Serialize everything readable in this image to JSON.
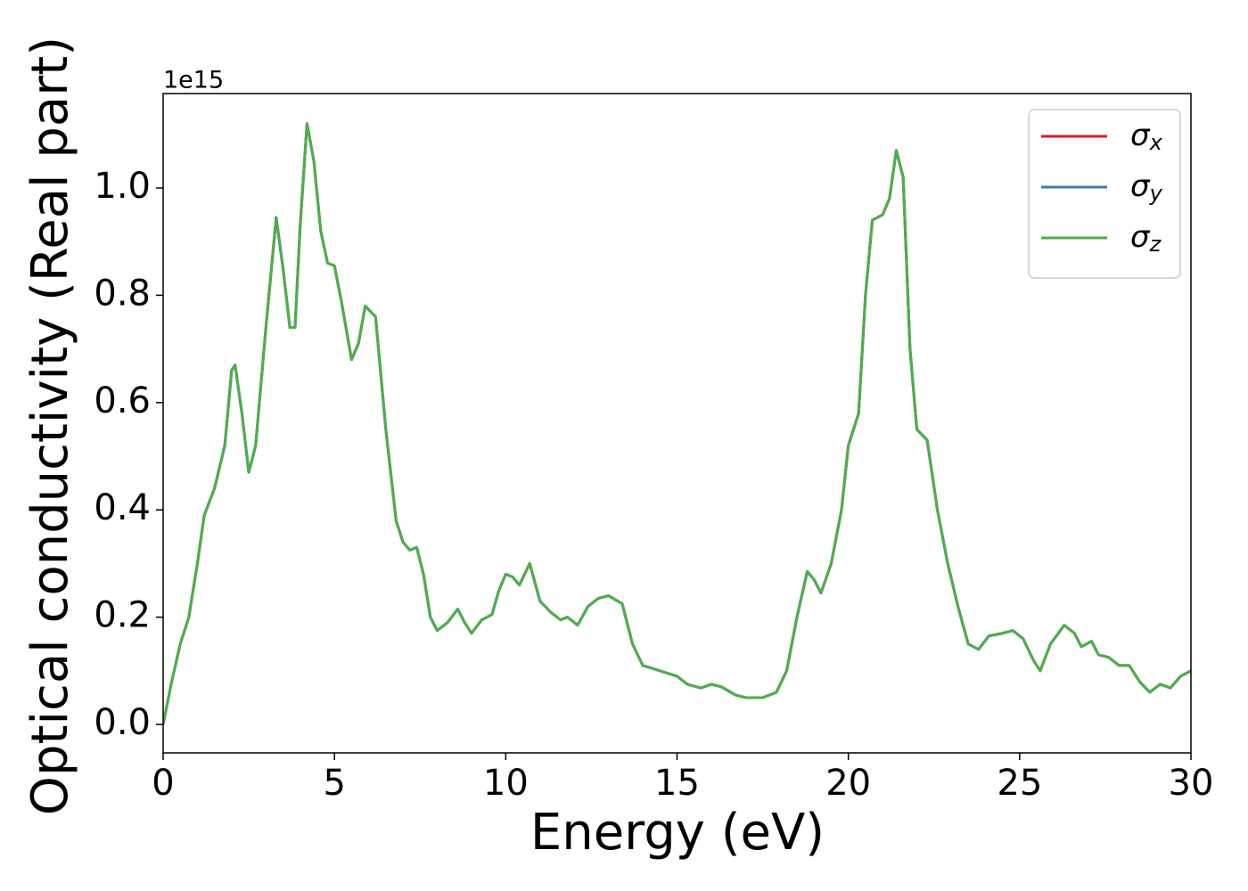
{
  "chart_data": {
    "type": "line",
    "xlabel": "Energy (eV)",
    "ylabel": "Optical conductivity (Real part)",
    "y_offset_label": "1e15",
    "xlim": [
      0,
      30
    ],
    "ylim": [
      -0.053,
      1.176
    ],
    "xticks": [
      0,
      5,
      10,
      15,
      20,
      25,
      30
    ],
    "yticks": [
      {
        "value": 0,
        "label": "0.0"
      },
      {
        "value": 0.2,
        "label": "0.2"
      },
      {
        "value": 0.4,
        "label": "0.4"
      },
      {
        "value": 0.6,
        "label": "0.6"
      },
      {
        "value": 0.8,
        "label": "0.8"
      },
      {
        "value": 1.0,
        "label": "1.0"
      }
    ],
    "grid": false,
    "legend": "upper right",
    "x": [
      0,
      0.25,
      0.5,
      0.75,
      1.0,
      1.2,
      1.5,
      1.8,
      2.0,
      2.1,
      2.3,
      2.5,
      2.7,
      3.0,
      3.3,
      3.5,
      3.7,
      3.85,
      4.0,
      4.2,
      4.4,
      4.6,
      4.8,
      5.0,
      5.2,
      5.5,
      5.7,
      5.9,
      6.2,
      6.5,
      6.8,
      7.0,
      7.2,
      7.4,
      7.6,
      7.8,
      8.0,
      8.3,
      8.6,
      8.8,
      9.0,
      9.3,
      9.6,
      9.8,
      10.0,
      10.2,
      10.4,
      10.7,
      11.0,
      11.3,
      11.6,
      11.8,
      12.1,
      12.4,
      12.7,
      13.0,
      13.4,
      13.7,
      14.0,
      14.5,
      15.0,
      15.3,
      15.7,
      16.0,
      16.3,
      16.7,
      17.0,
      17.5,
      17.9,
      18.2,
      18.5,
      18.8,
      19.0,
      19.2,
      19.5,
      19.8,
      20.0,
      20.3,
      20.5,
      20.7,
      21.0,
      21.2,
      21.4,
      21.6,
      21.8,
      22.0,
      22.3,
      22.6,
      22.9,
      23.2,
      23.5,
      23.8,
      24.1,
      24.5,
      24.8,
      25.1,
      25.4,
      25.6,
      25.9,
      26.3,
      26.6,
      26.8,
      27.1,
      27.3,
      27.6,
      27.9,
      28.2,
      28.5,
      28.8,
      29.1,
      29.4,
      29.7,
      30.0
    ],
    "series": [
      {
        "name": "σx",
        "color": "#e41a1c",
        "values": [
          0,
          0.08,
          0.15,
          0.2,
          0.3,
          0.39,
          0.44,
          0.52,
          0.66,
          0.67,
          0.58,
          0.47,
          0.52,
          0.74,
          0.945,
          0.85,
          0.74,
          0.74,
          0.93,
          1.12,
          1.05,
          0.92,
          0.86,
          0.855,
          0.79,
          0.68,
          0.71,
          0.78,
          0.76,
          0.55,
          0.38,
          0.34,
          0.325,
          0.33,
          0.28,
          0.2,
          0.175,
          0.19,
          0.215,
          0.19,
          0.17,
          0.195,
          0.205,
          0.25,
          0.28,
          0.275,
          0.26,
          0.3,
          0.23,
          0.21,
          0.195,
          0.2,
          0.185,
          0.22,
          0.235,
          0.24,
          0.225,
          0.15,
          0.11,
          0.1,
          0.09,
          0.075,
          0.068,
          0.075,
          0.07,
          0.055,
          0.05,
          0.05,
          0.06,
          0.1,
          0.2,
          0.285,
          0.27,
          0.245,
          0.3,
          0.4,
          0.52,
          0.58,
          0.8,
          0.94,
          0.95,
          0.98,
          1.07,
          1.02,
          0.7,
          0.55,
          0.53,
          0.4,
          0.3,
          0.22,
          0.15,
          0.14,
          0.165,
          0.17,
          0.175,
          0.16,
          0.12,
          0.1,
          0.15,
          0.185,
          0.17,
          0.145,
          0.155,
          0.13,
          0.125,
          0.11,
          0.11,
          0.08,
          0.06,
          0.075,
          0.068,
          0.09,
          0.1
        ]
      },
      {
        "name": "σy",
        "color": "#377eb8",
        "values": [
          0,
          0.08,
          0.15,
          0.2,
          0.3,
          0.39,
          0.44,
          0.52,
          0.66,
          0.67,
          0.58,
          0.47,
          0.52,
          0.74,
          0.945,
          0.85,
          0.74,
          0.74,
          0.93,
          1.12,
          1.05,
          0.92,
          0.86,
          0.855,
          0.79,
          0.68,
          0.71,
          0.78,
          0.76,
          0.55,
          0.38,
          0.34,
          0.325,
          0.33,
          0.28,
          0.2,
          0.175,
          0.19,
          0.215,
          0.19,
          0.17,
          0.195,
          0.205,
          0.25,
          0.28,
          0.275,
          0.26,
          0.3,
          0.23,
          0.21,
          0.195,
          0.2,
          0.185,
          0.22,
          0.235,
          0.24,
          0.225,
          0.15,
          0.11,
          0.1,
          0.09,
          0.075,
          0.068,
          0.075,
          0.07,
          0.055,
          0.05,
          0.05,
          0.06,
          0.1,
          0.2,
          0.285,
          0.27,
          0.245,
          0.3,
          0.4,
          0.52,
          0.58,
          0.8,
          0.94,
          0.95,
          0.98,
          1.07,
          1.02,
          0.7,
          0.55,
          0.53,
          0.4,
          0.3,
          0.22,
          0.15,
          0.14,
          0.165,
          0.17,
          0.175,
          0.16,
          0.12,
          0.1,
          0.15,
          0.185,
          0.17,
          0.145,
          0.155,
          0.13,
          0.125,
          0.11,
          0.11,
          0.08,
          0.06,
          0.075,
          0.068,
          0.09,
          0.1
        ]
      },
      {
        "name": "σz",
        "color": "#4daf4a",
        "values": [
          0,
          0.08,
          0.15,
          0.2,
          0.3,
          0.39,
          0.44,
          0.52,
          0.66,
          0.67,
          0.58,
          0.47,
          0.52,
          0.74,
          0.945,
          0.85,
          0.74,
          0.74,
          0.93,
          1.12,
          1.05,
          0.92,
          0.86,
          0.855,
          0.79,
          0.68,
          0.71,
          0.78,
          0.76,
          0.55,
          0.38,
          0.34,
          0.325,
          0.33,
          0.28,
          0.2,
          0.175,
          0.19,
          0.215,
          0.19,
          0.17,
          0.195,
          0.205,
          0.25,
          0.28,
          0.275,
          0.26,
          0.3,
          0.23,
          0.21,
          0.195,
          0.2,
          0.185,
          0.22,
          0.235,
          0.24,
          0.225,
          0.15,
          0.11,
          0.1,
          0.09,
          0.075,
          0.068,
          0.075,
          0.07,
          0.055,
          0.05,
          0.05,
          0.06,
          0.1,
          0.2,
          0.285,
          0.27,
          0.245,
          0.3,
          0.4,
          0.52,
          0.58,
          0.8,
          0.94,
          0.95,
          0.98,
          1.07,
          1.02,
          0.7,
          0.55,
          0.53,
          0.4,
          0.3,
          0.22,
          0.15,
          0.14,
          0.165,
          0.17,
          0.175,
          0.16,
          0.12,
          0.1,
          0.15,
          0.185,
          0.17,
          0.145,
          0.155,
          0.13,
          0.125,
          0.11,
          0.11,
          0.08,
          0.06,
          0.075,
          0.068,
          0.09,
          0.1
        ]
      }
    ]
  }
}
